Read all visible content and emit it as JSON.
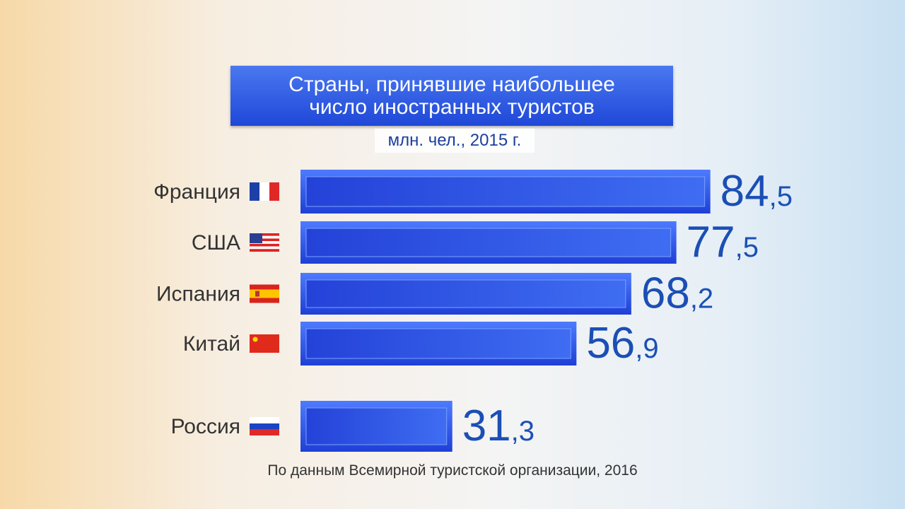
{
  "chart_data": {
    "type": "bar",
    "orientation": "horizontal",
    "title": "Страны, принявшие наибольшее число иностранных туристов",
    "subtitle": "млн. чел., 2015 г.",
    "source": "По данным Всемирной туристской организации, 2016",
    "categories": [
      "Франция",
      "США",
      "Испания",
      "Китай",
      "Россия"
    ],
    "values": [
      84.5,
      77.5,
      68.2,
      56.9,
      31.3
    ],
    "value_labels": [
      "84,5",
      "77,5",
      "68,2",
      "56,9",
      "31,3"
    ],
    "color": "#2a4fe0"
  }
}
